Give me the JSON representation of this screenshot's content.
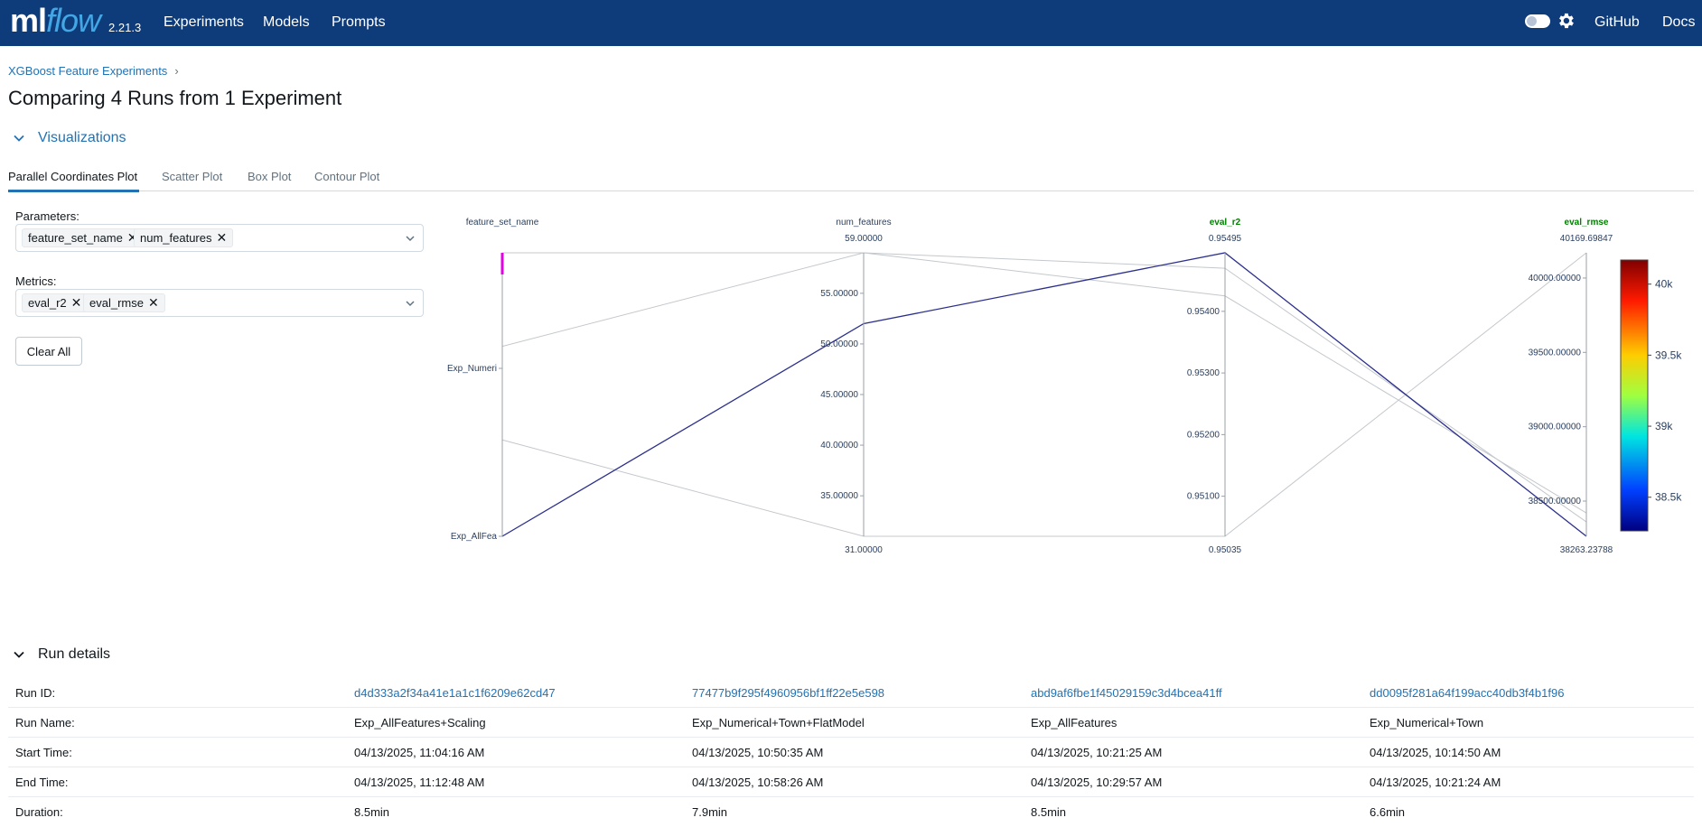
{
  "app": {
    "logo_ml": "ml",
    "logo_flow": "flow",
    "version": "2.21.3",
    "nav": [
      "Experiments",
      "Models",
      "Prompts"
    ],
    "right_links": [
      "GitHub",
      "Docs"
    ],
    "icons": {
      "theme_toggle": "toggle-icon",
      "settings": "gear-icon"
    }
  },
  "breadcrumb": {
    "experiment": "XGBoost Feature Experiments",
    "separator": "›"
  },
  "page_title": "Comparing 4 Runs from 1 Experiment",
  "visualizations": {
    "section_title": "Visualizations",
    "tabs": [
      "Parallel Coordinates Plot",
      "Scatter Plot",
      "Box Plot",
      "Contour Plot"
    ],
    "active_tab": 0
  },
  "controls": {
    "parameters_label": "Parameters:",
    "parameters": [
      "feature_set_name",
      "num_features"
    ],
    "metrics_label": "Metrics:",
    "metrics": [
      "eval_r2",
      "eval_rmse"
    ],
    "clear_all": "Clear All",
    "chip_remove": "✕"
  },
  "colors": {
    "nav_bg": "#0e3c7a",
    "link": "#2272b4",
    "highlight_line": "#2b2f8c",
    "metric_label": "#008000",
    "highlight_mark": "#e600e6"
  },
  "chart_data": {
    "type": "parallel_coordinates",
    "axes": [
      {
        "name": "feature_set_name",
        "kind": "categorical",
        "categories": [
          "Exp_AllFea",
          "Exp_Numeri"
        ],
        "metric": false
      },
      {
        "name": "num_features",
        "kind": "numeric",
        "range": [
          31,
          59
        ],
        "ticks": [
          "59.00000",
          "55.00000",
          "50.00000",
          "45.00000",
          "40.00000",
          "35.00000",
          "31.00000"
        ],
        "metric": false
      },
      {
        "name": "eval_r2",
        "kind": "numeric",
        "range": [
          0.95035,
          0.95495
        ],
        "ticks": [
          "0.95495",
          "0.95400",
          "0.95300",
          "0.95200",
          "0.95100",
          "0.95035"
        ],
        "metric": true
      },
      {
        "name": "eval_rmse",
        "kind": "numeric",
        "range": [
          38263.23788,
          40169.69847
        ],
        "ticks": [
          "40169.69847",
          "40000.00000",
          "39500.00000",
          "39000.00000",
          "38500.00000",
          "38263.23788"
        ],
        "metric": true
      }
    ],
    "colorbar": {
      "ticks": [
        "40k",
        "39.5k",
        "39k",
        "38.5k"
      ]
    },
    "lines": [
      {
        "feature_set": 0.0,
        "num_features": 59,
        "eval_r2": 0.95425,
        "eval_rmse": 38420,
        "highlight": false
      },
      {
        "feature_set": 0.33,
        "num_features": 59,
        "eval_r2": 0.9547,
        "eval_rmse": 38360,
        "highlight": false
      },
      {
        "feature_set": 0.66,
        "num_features": 31,
        "eval_r2": 0.95035,
        "eval_rmse": 40169.69847,
        "highlight": false
      },
      {
        "feature_set": 1.0,
        "num_features": 52,
        "eval_r2": 0.95495,
        "eval_rmse": 38263.23788,
        "highlight": true
      }
    ]
  },
  "run_details": {
    "section_title": "Run details",
    "rows": [
      {
        "label": "Run ID:",
        "values": [
          "d4d333a2f34a41e1a1c1f6209e62cd47",
          "77477b9f295f4960956bf1ff22e5e598",
          "abd9af6fbe1f45029159c3d4bcea41ff",
          "dd0095f281a64f199acc40db3f4b1f96"
        ],
        "link": true
      },
      {
        "label": "Run Name:",
        "values": [
          "Exp_AllFeatures+Scaling",
          "Exp_Numerical+Town+FlatModel",
          "Exp_AllFeatures",
          "Exp_Numerical+Town"
        ],
        "link": false
      },
      {
        "label": "Start Time:",
        "values": [
          "04/13/2025, 11:04:16 AM",
          "04/13/2025, 10:50:35 AM",
          "04/13/2025, 10:21:25 AM",
          "04/13/2025, 10:14:50 AM"
        ],
        "link": false
      },
      {
        "label": "End Time:",
        "values": [
          "04/13/2025, 11:12:48 AM",
          "04/13/2025, 10:58:26 AM",
          "04/13/2025, 10:29:57 AM",
          "04/13/2025, 10:21:24 AM"
        ],
        "link": false
      },
      {
        "label": "Duration:",
        "values": [
          "8.5min",
          "7.9min",
          "8.5min",
          "6.6min"
        ],
        "link": false
      }
    ]
  }
}
